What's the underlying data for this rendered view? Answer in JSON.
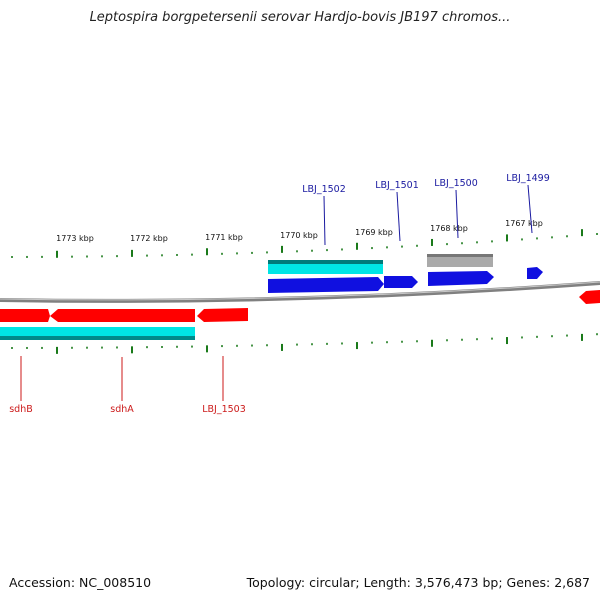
{
  "title": "Leptospira borgpetersenii serovar Hardjo-bovis JB197 chromos...",
  "footer": {
    "accession": "Accession: NC_008510",
    "summary": "Topology: circular; Length: 3,576,473 bp; Genes: 2,687"
  },
  "colors": {
    "forward_gene": "#1010e0",
    "reverse_gene": "#ff0000",
    "cds_band": "#00e5e5",
    "other_feature": "#aaaaaa",
    "backbone": "#808080",
    "tick": "#1a7a1a",
    "forward_label": "#1a1aa0",
    "reverse_label": "#cc1a1a"
  },
  "kbp_labels": [
    "1773 kbp",
    "1772 kbp",
    "1771 kbp",
    "1770 kbp",
    "1769 kbp",
    "1768 kbp",
    "1767 kbp"
  ],
  "forward_gene_labels": [
    "LBJ_1502",
    "LBJ_1501",
    "LBJ_1500",
    "LBJ_1499"
  ],
  "reverse_gene_labels": [
    "sdhB",
    "sdhA",
    "LBJ_1503"
  ]
}
